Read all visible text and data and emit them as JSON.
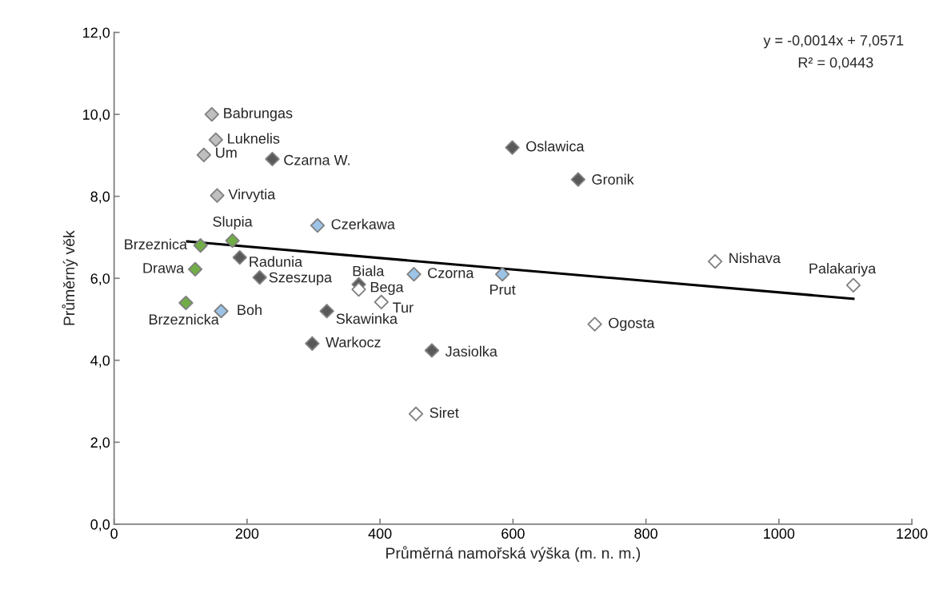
{
  "chart_data": {
    "type": "scatter",
    "xlabel": "Průměrná namořská výška (m. n. m.)",
    "ylabel": "Průměrný věk",
    "xlim": [
      0,
      1200
    ],
    "xticks": [
      0,
      200,
      400,
      600,
      800,
      1000,
      1200
    ],
    "ylim": [
      0,
      12
    ],
    "yticks": [
      {
        "value": 0,
        "label": "0,0"
      },
      {
        "value": 2,
        "label": "2,0"
      },
      {
        "value": 4,
        "label": "4,0"
      },
      {
        "value": 6,
        "label": "6,0"
      },
      {
        "value": 8,
        "label": "8,0"
      },
      {
        "value": 10,
        "label": "10,0"
      },
      {
        "value": 12,
        "label": "12,0"
      }
    ],
    "grid": false,
    "marker": "diamond",
    "series": [
      {
        "color": "#bfbfbf",
        "x": [
          147,
          153,
          135,
          155
        ],
        "values": [
          10.0,
          9.38,
          9.01,
          8.02
        ]
      },
      {
        "color": "#595959",
        "x": [
          238,
          189,
          219,
          320,
          298,
          368,
          478,
          599,
          698
        ],
        "values": [
          8.91,
          6.51,
          6.02,
          5.2,
          4.41,
          5.85,
          4.24,
          9.19,
          8.41
        ]
      },
      {
        "color": "#70ad47",
        "x": [
          178,
          130,
          122,
          108
        ],
        "values": [
          6.92,
          6.8,
          6.22,
          5.4
        ]
      },
      {
        "color": "#9dc3e6",
        "x": [
          306,
          161,
          451,
          584
        ],
        "values": [
          7.29,
          5.2,
          6.1,
          6.1
        ]
      },
      {
        "color": "#ffffff",
        "x": [
          368,
          402,
          454,
          723,
          904,
          1112
        ],
        "values": [
          5.73,
          5.42,
          2.69,
          4.88,
          6.41,
          5.83
        ]
      },
      {
        "type": "line",
        "color": "#000000",
        "marker": "none",
        "x": [
          110,
          1112
        ],
        "values": [
          6.9,
          5.5
        ]
      }
    ],
    "annotations": [
      "y = -0,0014x + 7,0571",
      "R² = 0,0443",
      {
        "text": "Babrungas",
        "x": 147,
        "y": 10.0
      },
      {
        "text": "Luknelis",
        "x": 153,
        "y": 9.38
      },
      {
        "text": "Um",
        "x": 135,
        "y": 9.01
      },
      {
        "text": "Virvytia",
        "x": 155,
        "y": 8.02
      },
      {
        "text": "Czarna W.",
        "x": 238,
        "y": 8.91
      },
      {
        "text": "Radunia",
        "x": 189,
        "y": 6.51
      },
      {
        "text": "Szeszupa",
        "x": 219,
        "y": 6.02
      },
      {
        "text": "Skawinka",
        "x": 320,
        "y": 5.2
      },
      {
        "text": "Warkocz",
        "x": 298,
        "y": 4.41
      },
      {
        "text": "Biala",
        "x": 368,
        "y": 5.85
      },
      {
        "text": "Jasiolka",
        "x": 478,
        "y": 4.24
      },
      {
        "text": "Oslawica",
        "x": 599,
        "y": 9.19
      },
      {
        "text": "Gronik",
        "x": 698,
        "y": 8.41
      },
      {
        "text": "Slupia",
        "x": 178,
        "y": 6.92
      },
      {
        "text": "Brzeznica",
        "x": 130,
        "y": 6.8
      },
      {
        "text": "Drawa",
        "x": 122,
        "y": 6.22
      },
      {
        "text": "Brzeznicka",
        "x": 108,
        "y": 5.4
      },
      {
        "text": "Czerkawa",
        "x": 306,
        "y": 7.29
      },
      {
        "text": "Boh",
        "x": 161,
        "y": 5.2
      },
      {
        "text": "Czorna",
        "x": 451,
        "y": 6.1
      },
      {
        "text": "Prut",
        "x": 584,
        "y": 6.1
      },
      {
        "text": "Bega",
        "x": 368,
        "y": 5.73
      },
      {
        "text": "Tur",
        "x": 402,
        "y": 5.42
      },
      {
        "text": "Siret",
        "x": 454,
        "y": 2.69
      },
      {
        "text": "Ogosta",
        "x": 723,
        "y": 4.88
      },
      {
        "text": "Nishava",
        "x": 904,
        "y": 6.41
      },
      {
        "text": "Palakariya",
        "x": 1112,
        "y": 5.83
      }
    ]
  }
}
